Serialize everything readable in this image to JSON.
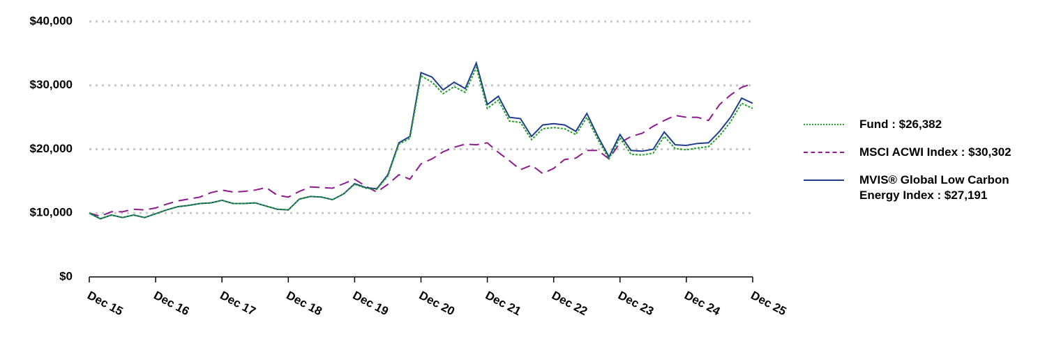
{
  "chart_data": {
    "type": "line",
    "categories": [
      "Dec 15",
      null,
      null,
      null,
      null,
      null,
      "Dec 16",
      null,
      null,
      null,
      null,
      null,
      "Dec 17",
      null,
      null,
      null,
      null,
      null,
      "Dec 18",
      null,
      null,
      null,
      null,
      null,
      "Dec 19",
      null,
      null,
      null,
      null,
      null,
      "Dec 20",
      null,
      null,
      null,
      null,
      null,
      "Dec 21",
      null,
      null,
      null,
      null,
      null,
      "Dec 22",
      null,
      null,
      null,
      null,
      null,
      "Dec 23",
      null,
      null,
      null,
      null,
      null,
      "Dec 24",
      null,
      null,
      null,
      null,
      null,
      "Dec 25"
    ],
    "series": [
      {
        "name": "MSCI ACWI Index : $30,302",
        "color": "#8e1a8e",
        "dash": "dashed",
        "values": [
          10000,
          9500,
          10200,
          10200,
          10600,
          10500,
          10800,
          11400,
          11900,
          12200,
          12500,
          13200,
          13600,
          13300,
          13400,
          13600,
          14000,
          12800,
          12500,
          13400,
          14100,
          14000,
          13900,
          14600,
          15300,
          14200,
          13300,
          14500,
          16000,
          15300,
          17700,
          18500,
          19600,
          20300,
          20800,
          20700,
          21000,
          19500,
          18200,
          16800,
          17500,
          16200,
          17000,
          18400,
          18600,
          19800,
          19800,
          18500,
          21000,
          22000,
          22500,
          23600,
          24500,
          25300,
          25000,
          25000,
          24500,
          27000,
          28500,
          29700,
          30302
        ]
      },
      {
        "name": "MVIS® Global Low Carbon Energy Index : $27,191",
        "color": "#1f3d8f",
        "dash": "solid",
        "values": [
          10000,
          9100,
          9700,
          9300,
          9700,
          9300,
          9900,
          10500,
          11000,
          11200,
          11500,
          11600,
          12000,
          11500,
          11500,
          11600,
          11100,
          10600,
          10500,
          12200,
          12600,
          12500,
          12100,
          13000,
          14600,
          14000,
          13800,
          16000,
          21000,
          22000,
          32000,
          31300,
          29300,
          30500,
          29500,
          33500,
          27000,
          28300,
          25000,
          24800,
          22000,
          23800,
          24000,
          23800,
          22800,
          25600,
          22000,
          18800,
          22300,
          19800,
          19700,
          20000,
          22700,
          20700,
          20600,
          20900,
          21000,
          22800,
          25000,
          28000,
          27191
        ]
      },
      {
        "name": "Fund : $26,382",
        "color": "#22a02a",
        "dash": "dotted",
        "values": [
          10000,
          9100,
          9700,
          9300,
          9700,
          9300,
          9900,
          10500,
          11000,
          11200,
          11500,
          11600,
          12000,
          11500,
          11500,
          11600,
          11100,
          10600,
          10500,
          12200,
          12600,
          12500,
          12100,
          13000,
          14500,
          13900,
          13700,
          15800,
          20800,
          21700,
          31500,
          30500,
          28700,
          29800,
          28900,
          32800,
          26400,
          27700,
          24400,
          24200,
          21500,
          23200,
          23400,
          23200,
          22300,
          25000,
          21500,
          18500,
          21800,
          19200,
          19100,
          19400,
          22000,
          20100,
          19900,
          20200,
          20400,
          22100,
          24300,
          27200,
          26382
        ]
      }
    ],
    "legend_order": [
      2,
      0,
      1
    ],
    "ylim": [
      0,
      40000
    ],
    "yticks": [
      {
        "value": 0,
        "label": "$0"
      },
      {
        "value": 10000,
        "label": "$10,000"
      },
      {
        "value": 20000,
        "label": "$20,000"
      },
      {
        "value": 30000,
        "label": "$30,000"
      },
      {
        "value": 40000,
        "label": "$40,000"
      }
    ],
    "grid": true
  }
}
